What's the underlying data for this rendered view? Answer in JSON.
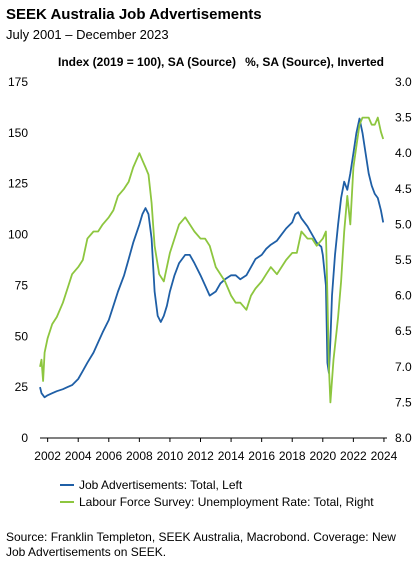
{
  "chart_data": {
    "type": "line",
    "title": "SEEK Australia Job Advertisements",
    "subtitle": "July 2001 – December 2023",
    "left_axis_label": "Index (2019 = 100), SA (Source)",
    "right_axis_label": "%, SA (Source), Inverted",
    "x_ticks": [
      "2002",
      "2004",
      "2006",
      "2008",
      "2010",
      "2012",
      "2014",
      "2016",
      "2018",
      "2020",
      "2022",
      "2024"
    ],
    "xlim": [
      2001.5,
      2024.2
    ],
    "ylim_left": [
      0,
      175
    ],
    "y_ticks_left": [
      "0",
      "25",
      "50",
      "75",
      "100",
      "125",
      "150",
      "175"
    ],
    "ylim_right": [
      8.0,
      3.0
    ],
    "right_inverted": true,
    "y_ticks_right": [
      "3.0",
      "3.5",
      "4.0",
      "4.5",
      "5.0",
      "5.5",
      "6.0",
      "6.5",
      "7.0",
      "7.5",
      "8.0"
    ],
    "legend_position": "bottom",
    "grid": false,
    "series": [
      {
        "name": "Job Advertisements: Total, Left",
        "axis": "left",
        "color": "#1f5fa6",
        "x": [
          2001.5,
          2001.6,
          2001.8,
          2002.0,
          2002.3,
          2002.6,
          2003.0,
          2003.3,
          2003.6,
          2004.0,
          2004.3,
          2004.6,
          2005.0,
          2005.3,
          2005.6,
          2006.0,
          2006.3,
          2006.6,
          2007.0,
          2007.3,
          2007.6,
          2008.0,
          2008.2,
          2008.4,
          2008.6,
          2008.8,
          2009.0,
          2009.2,
          2009.4,
          2009.6,
          2009.8,
          2010.0,
          2010.3,
          2010.6,
          2011.0,
          2011.3,
          2011.6,
          2012.0,
          2012.3,
          2012.6,
          2013.0,
          2013.3,
          2013.6,
          2014.0,
          2014.3,
          2014.6,
          2015.0,
          2015.3,
          2015.6,
          2016.0,
          2016.3,
          2016.6,
          2017.0,
          2017.3,
          2017.6,
          2018.0,
          2018.2,
          2018.4,
          2018.6,
          2019.0,
          2019.3,
          2019.6,
          2019.9,
          2020.0,
          2020.2,
          2020.3,
          2020.4,
          2020.5,
          2020.6,
          2020.8,
          2021.0,
          2021.2,
          2021.4,
          2021.6,
          2021.8,
          2022.0,
          2022.2,
          2022.4,
          2022.6,
          2022.8,
          2023.0,
          2023.2,
          2023.4,
          2023.6,
          2023.8,
          2023.95
        ],
        "values": [
          25,
          22,
          20,
          21,
          22,
          23,
          24,
          25,
          26,
          29,
          33,
          37,
          42,
          47,
          52,
          58,
          65,
          72,
          80,
          88,
          96,
          105,
          110,
          113,
          110,
          98,
          72,
          60,
          57,
          60,
          65,
          72,
          80,
          86,
          90,
          90,
          86,
          80,
          75,
          70,
          72,
          76,
          78,
          80,
          80,
          78,
          80,
          84,
          88,
          90,
          93,
          95,
          97,
          100,
          103,
          106,
          110,
          111,
          108,
          104,
          100,
          96,
          94,
          90,
          75,
          37,
          32,
          48,
          70,
          90,
          105,
          118,
          126,
          122,
          130,
          140,
          150,
          157,
          150,
          140,
          130,
          124,
          120,
          118,
          112,
          106
        ]
      },
      {
        "name": "Labour Force Survey: Unemployment Rate: Total, Right",
        "axis": "right",
        "color": "#8dc63f",
        "x": [
          2001.5,
          2001.6,
          2001.7,
          2001.8,
          2002.0,
          2002.3,
          2002.6,
          2003.0,
          2003.3,
          2003.6,
          2004.0,
          2004.3,
          2004.6,
          2005.0,
          2005.3,
          2005.6,
          2006.0,
          2006.3,
          2006.6,
          2007.0,
          2007.3,
          2007.6,
          2008.0,
          2008.2,
          2008.4,
          2008.6,
          2008.8,
          2009.0,
          2009.3,
          2009.6,
          2010.0,
          2010.3,
          2010.6,
          2011.0,
          2011.3,
          2011.6,
          2012.0,
          2012.3,
          2012.6,
          2013.0,
          2013.3,
          2013.6,
          2014.0,
          2014.3,
          2014.6,
          2015.0,
          2015.3,
          2015.6,
          2016.0,
          2016.3,
          2016.6,
          2017.0,
          2017.3,
          2017.6,
          2018.0,
          2018.3,
          2018.6,
          2019.0,
          2019.3,
          2019.6,
          2020.0,
          2020.2,
          2020.3,
          2020.4,
          2020.5,
          2020.7,
          2020.9,
          2021.0,
          2021.2,
          2021.4,
          2021.6,
          2021.8,
          2022.0,
          2022.2,
          2022.4,
          2022.6,
          2022.8,
          2023.0,
          2023.2,
          2023.4,
          2023.6,
          2023.8,
          2023.95
        ],
        "values": [
          7.0,
          6.9,
          7.2,
          6.8,
          6.6,
          6.4,
          6.3,
          6.1,
          5.9,
          5.7,
          5.6,
          5.5,
          5.2,
          5.1,
          5.1,
          5.0,
          4.9,
          4.8,
          4.6,
          4.5,
          4.4,
          4.2,
          4.0,
          4.1,
          4.2,
          4.3,
          4.7,
          5.3,
          5.7,
          5.8,
          5.4,
          5.2,
          5.0,
          4.9,
          5.0,
          5.1,
          5.2,
          5.2,
          5.3,
          5.6,
          5.7,
          5.8,
          6.0,
          6.1,
          6.1,
          6.2,
          6.0,
          5.9,
          5.8,
          5.7,
          5.6,
          5.7,
          5.6,
          5.5,
          5.4,
          5.4,
          5.1,
          5.2,
          5.2,
          5.3,
          5.2,
          5.1,
          6.0,
          7.0,
          7.5,
          6.9,
          6.5,
          6.3,
          5.8,
          5.1,
          4.6,
          5.0,
          4.2,
          3.9,
          3.6,
          3.5,
          3.5,
          3.5,
          3.6,
          3.6,
          3.5,
          3.7,
          3.8
        ]
      }
    ]
  },
  "legend": {
    "items": [
      {
        "label": "Job Advertisements: Total, Left",
        "color": "#1f5fa6"
      },
      {
        "label": "Labour Force Survey: Unemployment Rate: Total, Right",
        "color": "#8dc63f"
      }
    ]
  },
  "source_note": "Source: Franklin Templeton, SEEK Australia, Macrobond. Coverage: New Job Advertisements on SEEK."
}
